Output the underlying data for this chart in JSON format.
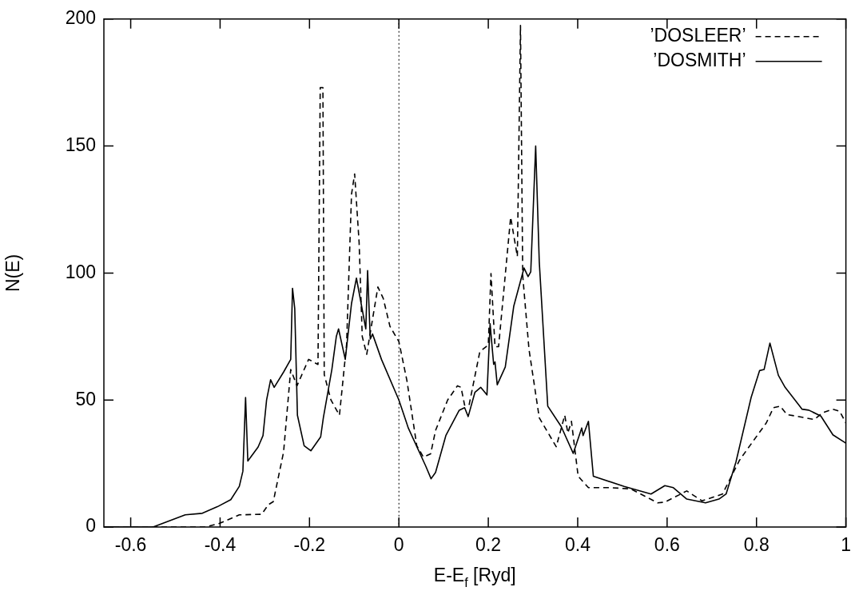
{
  "chart_data": {
    "type": "line",
    "xlabel": "E-E$_{f}$ [Ryd]",
    "ylabel": "N(E)",
    "xlim": [
      -0.66,
      1
    ],
    "xticks": [
      -0.6,
      -0.4,
      -0.2,
      0,
      0.2,
      0.4,
      0.6,
      0.8,
      1
    ],
    "ylim": [
      0,
      200
    ],
    "yticks": [
      0,
      50,
      100,
      150,
      200
    ],
    "grid": false,
    "legend": "top right",
    "marker": "none",
    "ref_lines": [
      {
        "axis": "x",
        "value": 0,
        "line_style": "dotted",
        "color": "#000000"
      }
    ],
    "series": [
      {
        "name": "’DOSLEER’",
        "color": "#000000",
        "line_style": "dashed",
        "x": [
          -0.66,
          -0.433,
          -0.402,
          -0.357,
          -0.307,
          -0.292,
          -0.281,
          -0.258,
          -0.242,
          -0.228,
          -0.202,
          -0.181,
          -0.176,
          -0.17,
          -0.167,
          -0.152,
          -0.133,
          -0.117,
          -0.106,
          -0.099,
          -0.089,
          -0.082,
          -0.072,
          -0.047,
          -0.035,
          -0.02,
          0,
          0.018,
          0.04,
          0.055,
          0.071,
          0.082,
          0.109,
          0.131,
          0.139,
          0.147,
          0.157,
          0.181,
          0.2,
          0.206,
          0.215,
          0.223,
          0.25,
          0.265,
          0.272,
          0.277,
          0.291,
          0.314,
          0.352,
          0.371,
          0.378,
          0.386,
          0.401,
          0.424,
          0.473,
          0.519,
          0.579,
          0.595,
          0.644,
          0.678,
          0.724,
          0.762,
          0.781,
          0.822,
          0.838,
          0.853,
          0.868,
          0.909,
          0.929,
          0.948,
          0.971,
          0.986,
          1
        ],
        "values": [
          0,
          0,
          1.4,
          4.8,
          5,
          8.8,
          10,
          29.5,
          62,
          55.6,
          66,
          64,
          173,
          173,
          60,
          50,
          44,
          72,
          131,
          139,
          112,
          75,
          68,
          94.5,
          90,
          79,
          73,
          57.6,
          32,
          27.5,
          28.8,
          38,
          50,
          55.6,
          55,
          48,
          48,
          69,
          71.7,
          99.8,
          71,
          71,
          122,
          106.5,
          197.5,
          99,
          70,
          43,
          31.6,
          44,
          37,
          41.6,
          20,
          15.5,
          15.5,
          15,
          9.5,
          9.8,
          14.2,
          10.3,
          13,
          26.3,
          31,
          41,
          47,
          47.6,
          44.3,
          43,
          42.3,
          45,
          46.4,
          45.6,
          41
        ]
      },
      {
        "name": "’DOSMITH’",
        "color": "#000000",
        "line_style": "solid",
        "x": [
          -0.66,
          -0.55,
          -0.478,
          -0.44,
          -0.406,
          -0.376,
          -0.357,
          -0.349,
          -0.343,
          -0.338,
          -0.315,
          -0.304,
          -0.296,
          -0.287,
          -0.279,
          -0.258,
          -0.242,
          -0.238,
          -0.233,
          -0.227,
          -0.212,
          -0.197,
          -0.175,
          -0.169,
          -0.16,
          -0.15,
          -0.14,
          -0.135,
          -0.12,
          -0.106,
          -0.095,
          -0.074,
          -0.07,
          -0.064,
          -0.059,
          -0.039,
          0,
          0.021,
          0.06,
          0.072,
          0.082,
          0.105,
          0.135,
          0.147,
          0.155,
          0.17,
          0.183,
          0.197,
          0.204,
          0.212,
          0.215,
          0.22,
          0.238,
          0.257,
          0.28,
          0.289,
          0.295,
          0.306,
          0.314,
          0.333,
          0.363,
          0.39,
          0.409,
          0.412,
          0.424,
          0.435,
          0.504,
          0.564,
          0.595,
          0.614,
          0.644,
          0.686,
          0.716,
          0.732,
          0.754,
          0.788,
          0.807,
          0.817,
          0.83,
          0.849,
          0.864,
          0.902,
          0.917,
          0.944,
          0.971,
          1
        ],
        "values": [
          0,
          0,
          4.8,
          5.4,
          8,
          10.8,
          16,
          22,
          51,
          26,
          31.5,
          36,
          50,
          58,
          55,
          61,
          66,
          94,
          86,
          44,
          32,
          30,
          35.5,
          43,
          52,
          62,
          75,
          78,
          66,
          88,
          98,
          78,
          101,
          74,
          76,
          66,
          50,
          39,
          24,
          19,
          21.5,
          36,
          46,
          47,
          43.5,
          53,
          55,
          52,
          80,
          64,
          65,
          56,
          63,
          87,
          102,
          98.6,
          100.5,
          150,
          104.5,
          47.6,
          39.6,
          29,
          39,
          36,
          41.6,
          20,
          16,
          13,
          16.3,
          15.5,
          11,
          9.5,
          11,
          13,
          25.6,
          51,
          61.6,
          62,
          72.4,
          59.7,
          55,
          46.4,
          46,
          43.7,
          36.3,
          33
        ]
      }
    ]
  }
}
